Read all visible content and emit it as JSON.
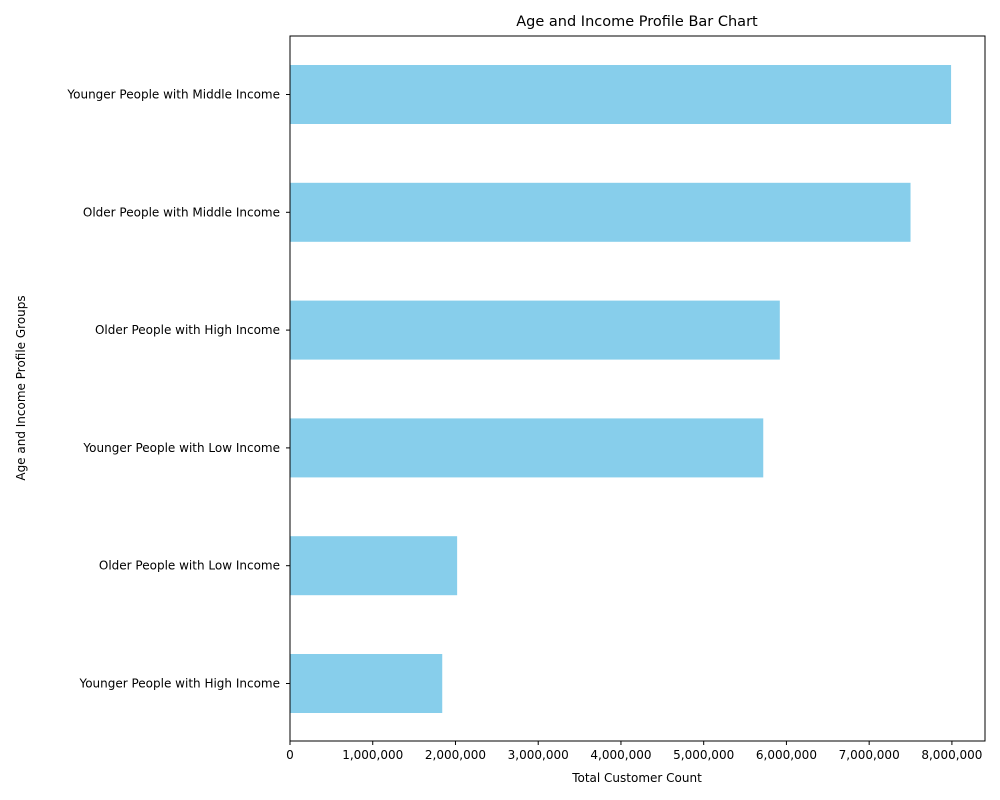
{
  "chart_data": {
    "type": "bar",
    "orientation": "horizontal",
    "title": "Age and Income Profile Bar Chart",
    "xlabel": "Total Customer Count",
    "ylabel": "Age and Income Profile Groups",
    "xlim": [
      0,
      8400000
    ],
    "xticks": [
      0,
      1000000,
      2000000,
      3000000,
      4000000,
      5000000,
      6000000,
      7000000,
      8000000
    ],
    "xtick_labels": [
      "0",
      "1,000,000",
      "2,000,000",
      "3,000,000",
      "4,000,000",
      "5,000,000",
      "6,000,000",
      "7,000,000",
      "8,000,000"
    ],
    "categories": [
      "Younger People with Middle Income",
      "Older People with Middle Income",
      "Older People with High Income",
      "Younger People with Low Income",
      "Older People with Low Income",
      "Younger People with High Income"
    ],
    "values": [
      7990000,
      7500000,
      5920000,
      5720000,
      2020000,
      1840000
    ],
    "bar_color": "#87ceeb",
    "grid": false
  }
}
